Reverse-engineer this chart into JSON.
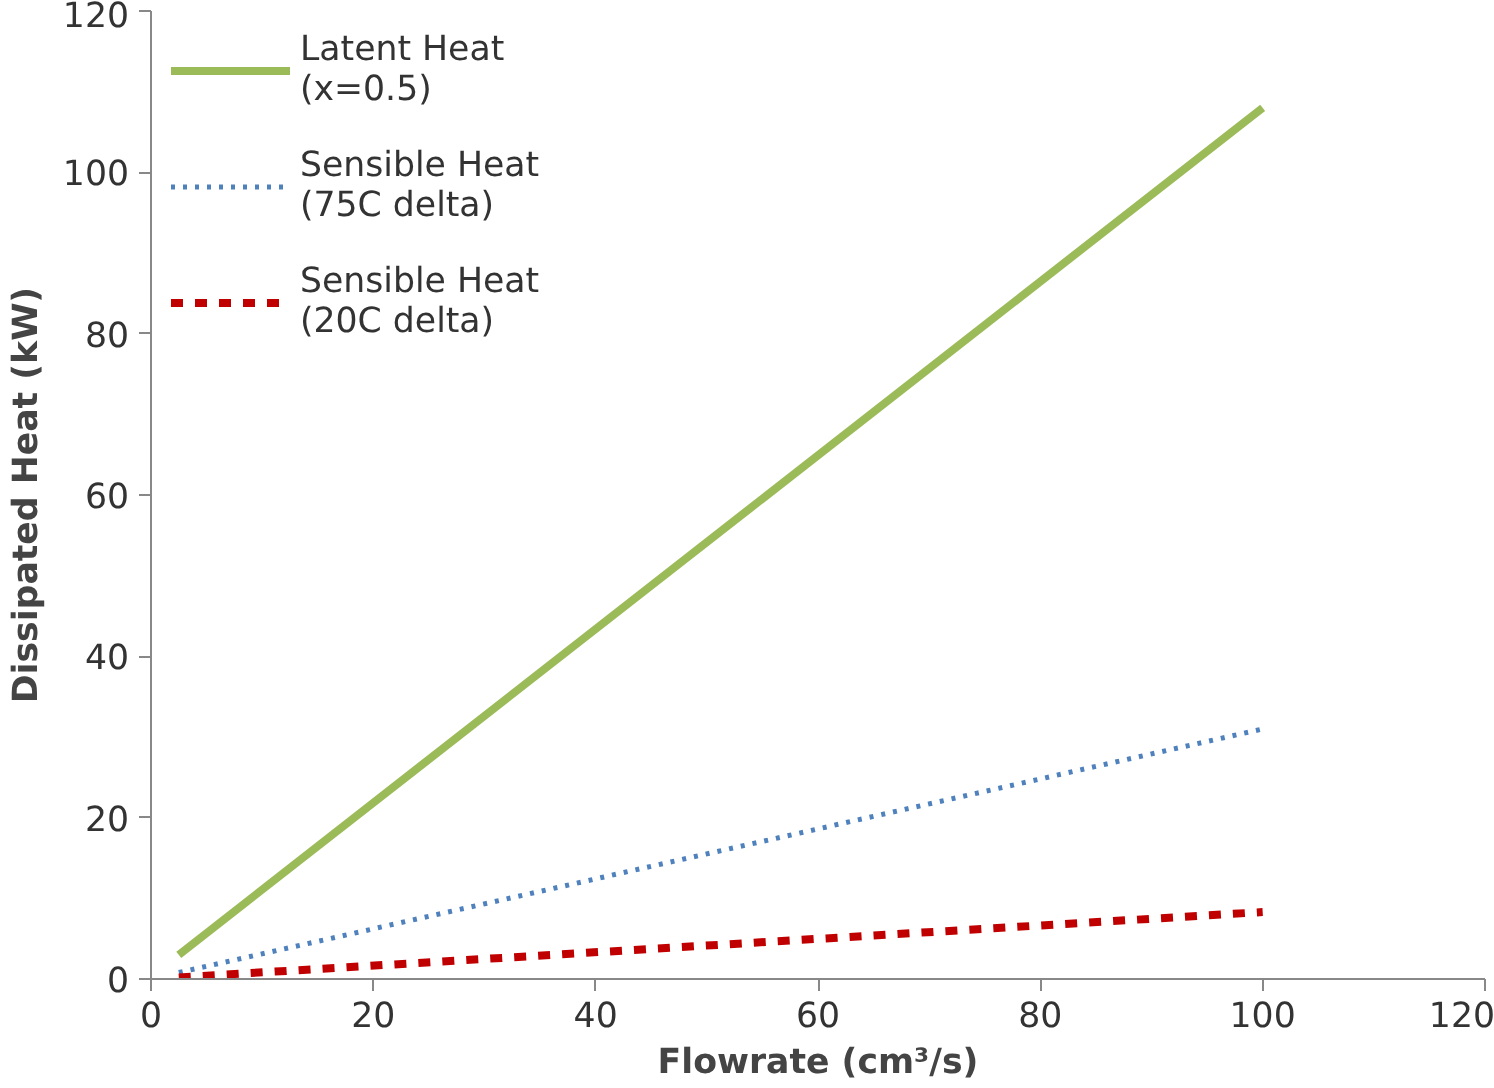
{
  "chart_data": {
    "type": "line",
    "xlabel": "Flowrate (cm³/s)",
    "ylabel": "Dissipated Heat (kW)",
    "xlim": [
      0,
      120
    ],
    "xticks": [
      0,
      20,
      40,
      60,
      80,
      100,
      120
    ],
    "ylim": [
      0,
      120
    ],
    "yticks": [
      0,
      20,
      40,
      60,
      80,
      100,
      120
    ],
    "grid": false,
    "legend": "top left",
    "marker": "none",
    "x": [
      2.5,
      100
    ],
    "series": [
      {
        "name": "Latent Heat\n(x=0.5)",
        "color": "#9bbb59",
        "line_style": "solid",
        "values": [
          3,
          108
        ]
      },
      {
        "name": "Sensible Heat\n(75C delta)",
        "color": "#4f81bd",
        "line_style": "dotted",
        "values": [
          0.8,
          31
        ]
      },
      {
        "name": "Sensible Heat\n(20C delta)",
        "color": "#c00000",
        "line_style": "dashed",
        "values": [
          0.2,
          8.3
        ]
      }
    ]
  }
}
